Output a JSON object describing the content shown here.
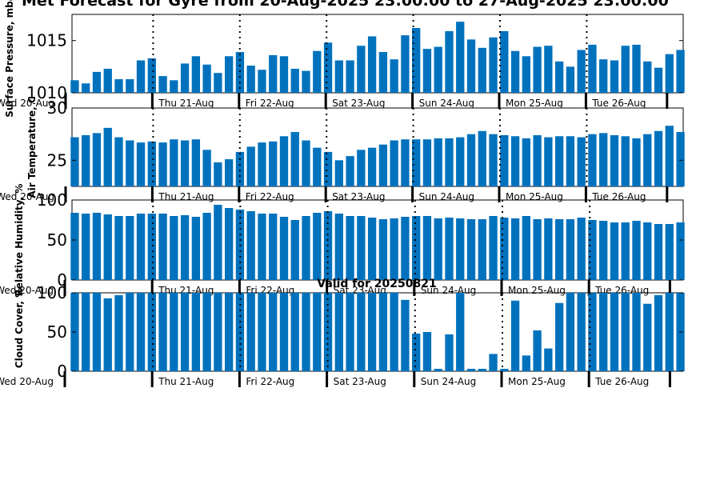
{
  "chart_data": {
    "type": "bar",
    "title": "Met Forecast for Gyre from 20-Aug-2025 23:00:00 to 27-Aug-2025 23:00:00",
    "subtitle": "Valid for 20250821",
    "bar_color": "#0072BD",
    "day_labels": [
      "Wed 20-Aug",
      "Thu 21-Aug",
      "Fri 22-Aug",
      "Sat 23-Aug",
      "Sun 24-Aug",
      "Mon 25-Aug",
      "Tue 26-Aug"
    ],
    "panels": [
      {
        "ylabel": "Surface Pressure, mbar",
        "ylim": [
          1010,
          1017.5
        ],
        "yticks": [
          1010,
          1015
        ],
        "values": [
          1011.2,
          1010.9,
          1012.0,
          1012.3,
          1011.3,
          1011.3,
          1013.1,
          1013.3,
          1011.6,
          1011.2,
          1012.8,
          1013.5,
          1012.7,
          1011.9,
          1013.5,
          1013.9,
          1012.6,
          1012.2,
          1013.6,
          1013.5,
          1012.3,
          1012.1,
          1014.0,
          1014.8,
          1013.1,
          1013.1,
          1014.5,
          1015.4,
          1013.9,
          1013.2,
          1015.5,
          1016.2,
          1014.2,
          1014.4,
          1015.9,
          1016.8,
          1015.1,
          1014.3,
          1015.3,
          1015.9,
          1014.0,
          1013.5,
          1014.4,
          1014.5,
          1013.0,
          1012.5,
          1014.1,
          1014.6,
          1013.2,
          1013.1,
          1014.5,
          1014.6,
          1013.0,
          1012.4,
          1013.7,
          1014.1
        ]
      },
      {
        "ylabel": "Air Temperature, C",
        "ylim": [
          22.5,
          30
        ],
        "yticks": [
          25,
          30
        ],
        "values": [
          27.2,
          27.4,
          27.6,
          28.1,
          27.2,
          26.9,
          26.7,
          26.8,
          26.7,
          27.0,
          26.9,
          27.0,
          26.0,
          24.8,
          25.1,
          25.8,
          26.3,
          26.7,
          26.8,
          27.3,
          27.7,
          26.9,
          26.2,
          25.8,
          25.0,
          25.4,
          26.0,
          26.2,
          26.5,
          26.9,
          27.0,
          27.0,
          27.0,
          27.1,
          27.1,
          27.2,
          27.5,
          27.8,
          27.5,
          27.4,
          27.3,
          27.1,
          27.4,
          27.2,
          27.3,
          27.3,
          27.2,
          27.5,
          27.6,
          27.4,
          27.3,
          27.1,
          27.5,
          27.8,
          28.3,
          27.7
        ]
      },
      {
        "ylabel": "Relative Humidity, %",
        "ylim": [
          0,
          100
        ],
        "yticks": [
          0,
          50,
          100
        ],
        "values": [
          84,
          83,
          84,
          82,
          80,
          80,
          83,
          83,
          83,
          80,
          81,
          79,
          84,
          94,
          90,
          88,
          86,
          83,
          83,
          79,
          75,
          80,
          84,
          86,
          83,
          80,
          80,
          78,
          76,
          77,
          79,
          80,
          80,
          77,
          78,
          77,
          76,
          76,
          80,
          78,
          77,
          80,
          76,
          77,
          76,
          76,
          78,
          75,
          74,
          72,
          72,
          74,
          72,
          70,
          70,
          72
        ]
      },
      {
        "ylabel": "Cloud Cover, %",
        "ylim": [
          0,
          100
        ],
        "yticks": [
          0,
          50,
          100
        ],
        "values": [
          100,
          100,
          100,
          93,
          97,
          100,
          100,
          100,
          100,
          100,
          100,
          100,
          100,
          100,
          100,
          100,
          100,
          100,
          100,
          100,
          100,
          100,
          100,
          100,
          100,
          100,
          100,
          100,
          100,
          100,
          91,
          48,
          50,
          3,
          47,
          100,
          3,
          3,
          22,
          3,
          90,
          20,
          52,
          29,
          87,
          100,
          100,
          100,
          100,
          100,
          100,
          100,
          86,
          97,
          100,
          100
        ]
      }
    ]
  }
}
